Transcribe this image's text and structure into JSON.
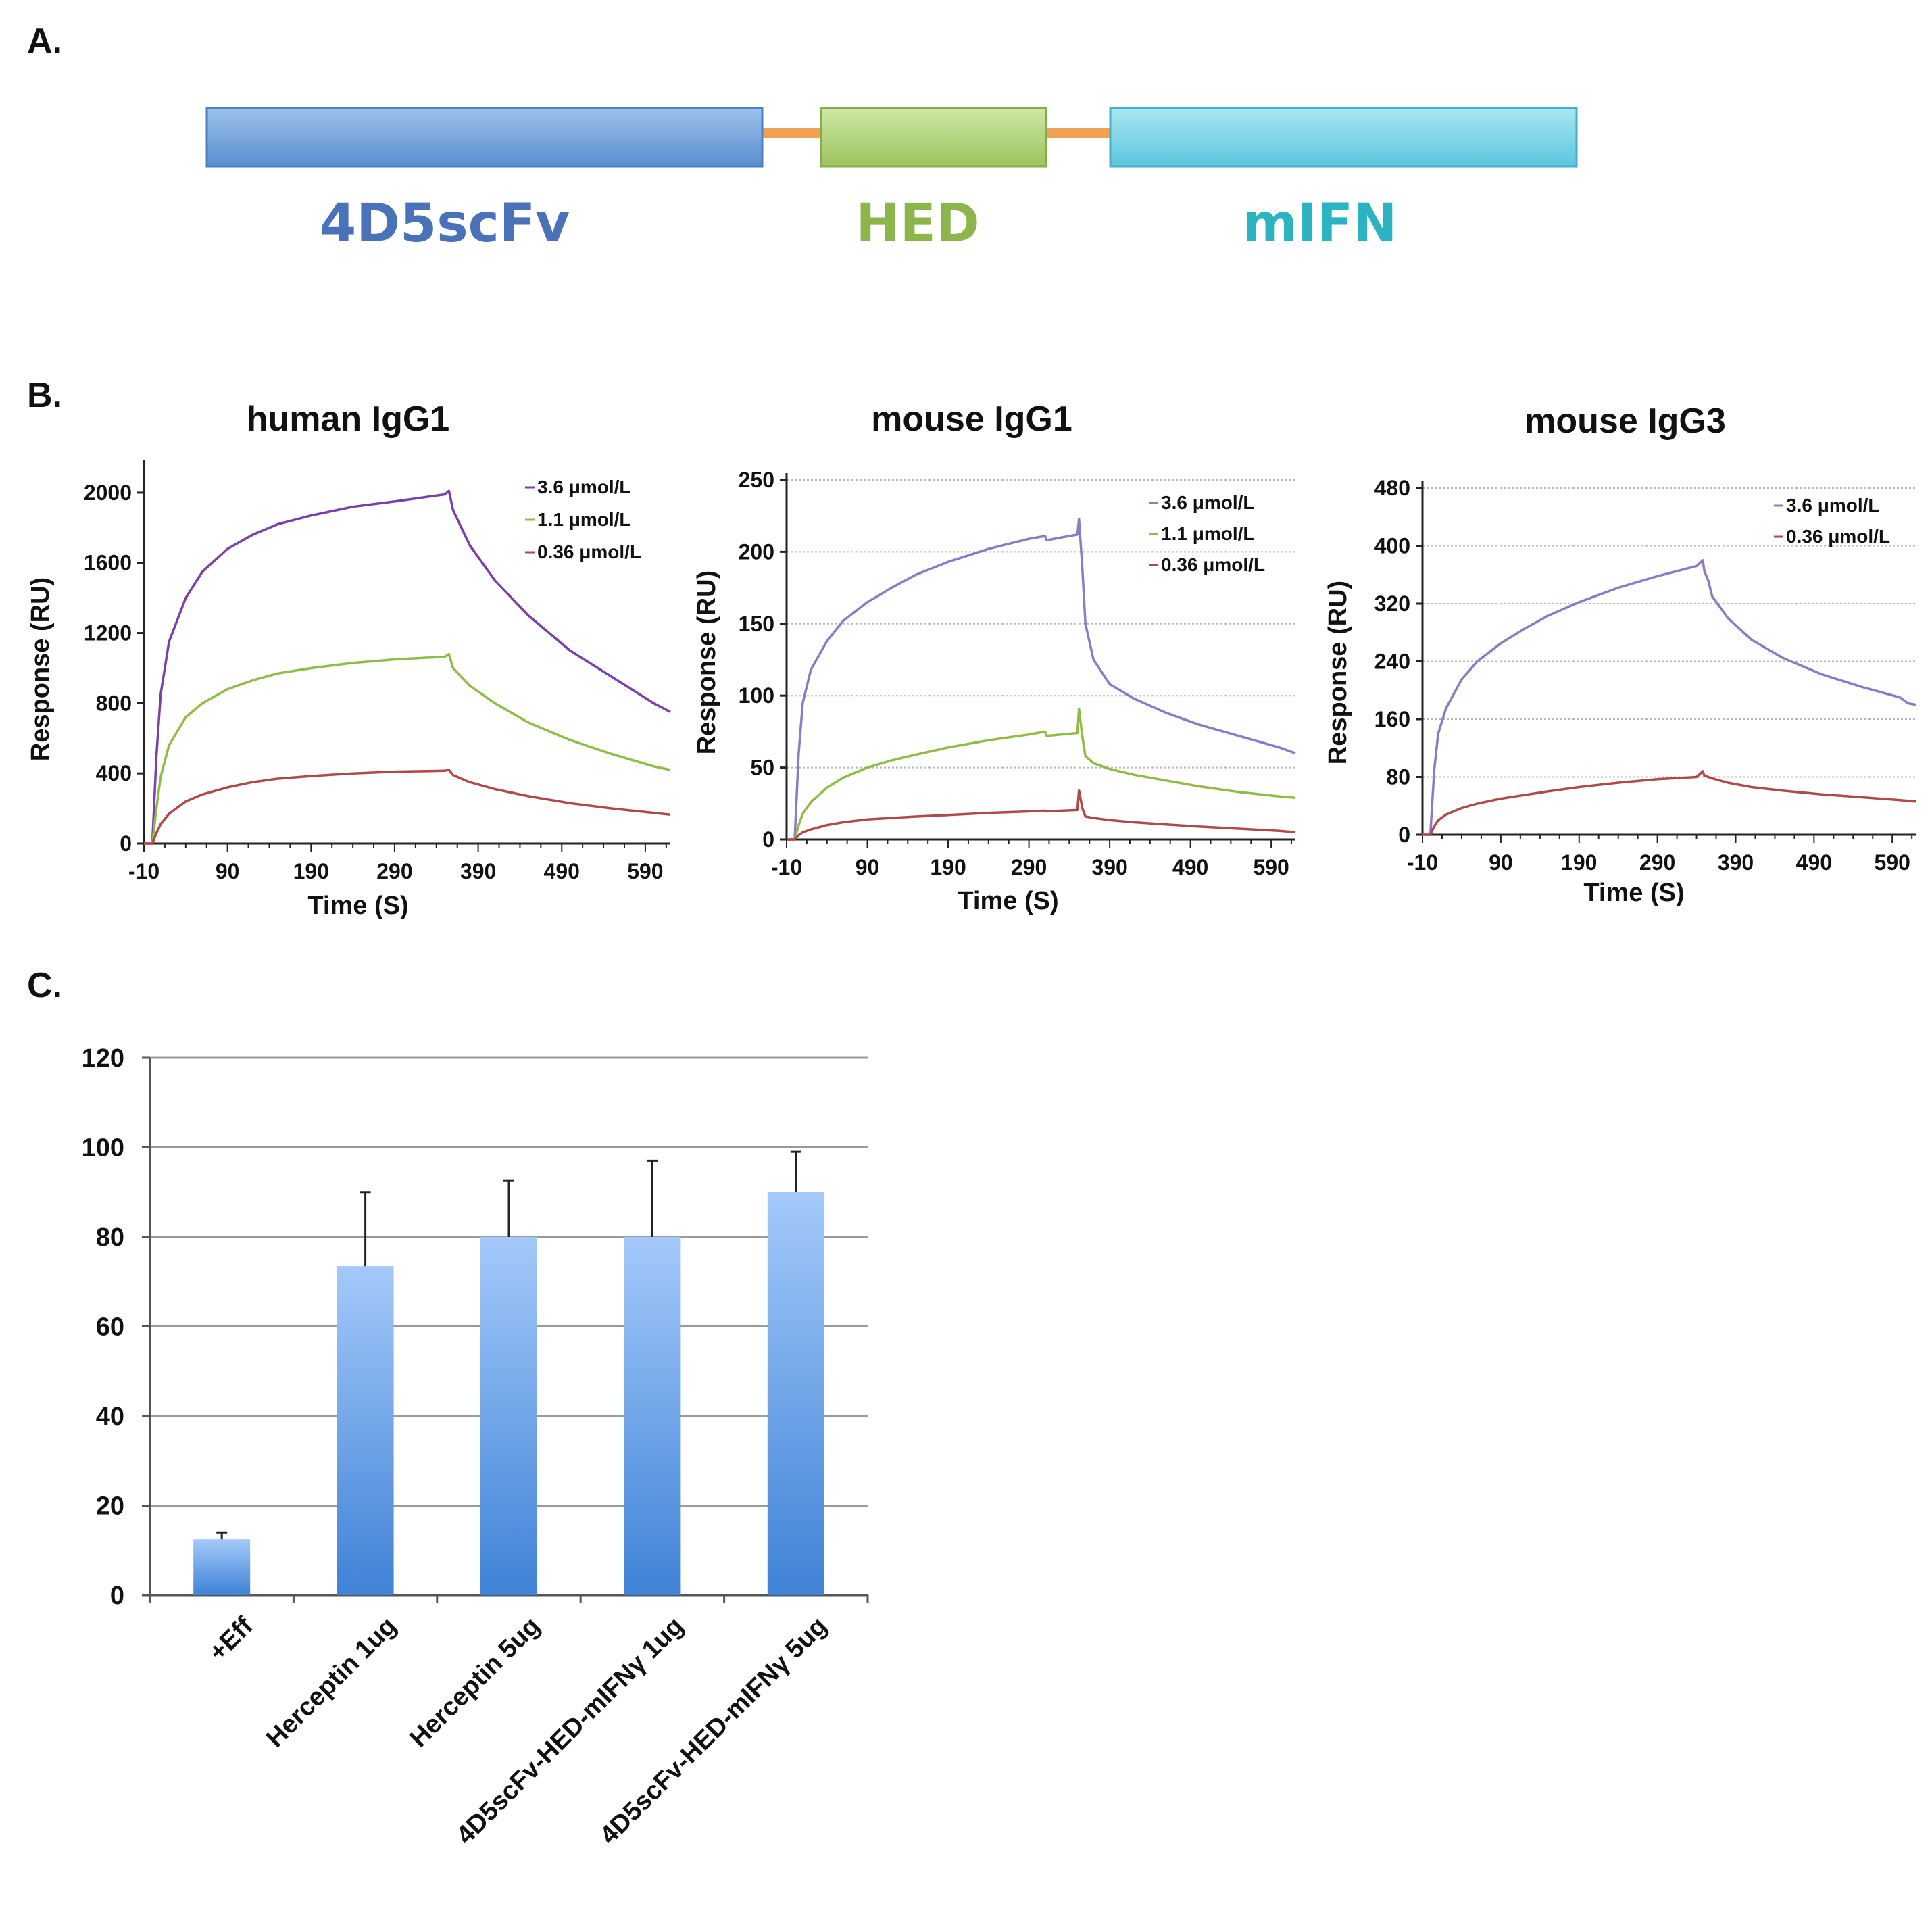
{
  "panels": {
    "a": "A.",
    "b": "B.",
    "c": "C."
  },
  "colors": {
    "scfv": "#6aa0d8",
    "hed": "#a6cc66",
    "mifn": "#6fcfe3",
    "linker": "#f0a050",
    "purple": "#7a3fa8",
    "green": "#8fbc45",
    "red": "#b04a4a",
    "bar": "#5b9ae3",
    "axis": "#222222"
  },
  "construct": {
    "labels": {
      "scfv": "4D5scFv",
      "hed": "HED",
      "mifn": "mIFN"
    },
    "label_colors": {
      "scfv": "#4a72b8",
      "hed": "#8cb54c",
      "mifn": "#2bb3c2"
    }
  },
  "chart_data": [
    {
      "type": "line",
      "title": "human IgG1",
      "xlabel": "Time (S)",
      "ylabel": "Response (RU)",
      "xlim": [
        -10,
        620
      ],
      "ylim": [
        0,
        2150
      ],
      "xticks": [
        -10,
        90,
        190,
        290,
        390,
        490,
        590
      ],
      "yticks": [
        0,
        400,
        800,
        1200,
        1600,
        2000
      ],
      "gridlines": false,
      "legend_position": "top-right",
      "series": [
        {
          "name": "3.6 μmol/L",
          "color": "#7a3fa8",
          "x": [
            -10,
            0,
            5,
            10,
            20,
            40,
            60,
            90,
            120,
            150,
            190,
            240,
            290,
            350,
            355,
            360,
            380,
            410,
            450,
            500,
            550,
            600,
            620
          ],
          "y": [
            0,
            0,
            500,
            850,
            1150,
            1400,
            1550,
            1680,
            1760,
            1820,
            1870,
            1920,
            1950,
            1990,
            2010,
            1900,
            1700,
            1500,
            1300,
            1100,
            950,
            800,
            750
          ]
        },
        {
          "name": "1.1 μmol/L",
          "color": "#8fbc45",
          "x": [
            -10,
            0,
            5,
            10,
            20,
            40,
            60,
            90,
            120,
            150,
            190,
            240,
            290,
            350,
            355,
            360,
            380,
            410,
            450,
            500,
            550,
            600,
            620
          ],
          "y": [
            0,
            0,
            200,
            380,
            560,
            720,
            800,
            880,
            930,
            970,
            1000,
            1030,
            1050,
            1065,
            1080,
            1000,
            900,
            800,
            690,
            590,
            510,
            440,
            420
          ]
        },
        {
          "name": "0.36 μmol/L",
          "color": "#b04a4a",
          "x": [
            -10,
            0,
            5,
            10,
            20,
            40,
            60,
            90,
            120,
            150,
            190,
            240,
            290,
            350,
            355,
            360,
            380,
            410,
            450,
            500,
            550,
            600,
            620
          ],
          "y": [
            0,
            0,
            60,
            110,
            170,
            240,
            280,
            320,
            350,
            370,
            385,
            400,
            410,
            415,
            420,
            390,
            350,
            310,
            270,
            230,
            200,
            175,
            165
          ]
        }
      ]
    },
    {
      "type": "line",
      "title": "mouse IgG1",
      "xlabel": "Time (S)",
      "ylabel": "Response (RU)",
      "xlim": [
        -10,
        620
      ],
      "ylim": [
        0,
        250
      ],
      "xticks": [
        -10,
        90,
        190,
        290,
        390,
        490,
        590
      ],
      "yticks": [
        0,
        50,
        100,
        150,
        200,
        250
      ],
      "gridlines": true,
      "legend_position": "top-right",
      "series": [
        {
          "name": "3.6 μmol/L",
          "color": "#8b7bc4",
          "x": [
            -10,
            0,
            5,
            10,
            20,
            40,
            60,
            90,
            120,
            150,
            190,
            240,
            290,
            310,
            312,
            330,
            350,
            352,
            356,
            360,
            370,
            390,
            420,
            460,
            500,
            550,
            600,
            620
          ],
          "y": [
            0,
            0,
            60,
            95,
            118,
            138,
            152,
            165,
            175,
            184,
            193,
            202,
            209,
            211,
            208,
            210,
            212,
            223,
            190,
            150,
            125,
            108,
            98,
            88,
            80,
            72,
            64,
            60
          ]
        },
        {
          "name": "1.1 μmol/L",
          "color": "#8fbc45",
          "x": [
            -10,
            0,
            5,
            10,
            20,
            40,
            60,
            90,
            120,
            150,
            190,
            240,
            290,
            310,
            312,
            330,
            350,
            352,
            356,
            360,
            370,
            390,
            420,
            460,
            500,
            550,
            600,
            620
          ],
          "y": [
            0,
            0,
            10,
            18,
            26,
            36,
            43,
            50,
            55,
            59,
            64,
            69,
            73,
            75,
            72,
            73,
            74,
            91,
            72,
            58,
            53,
            49,
            45,
            41,
            37,
            33,
            30,
            29
          ]
        },
        {
          "name": "0.36 μmol/L",
          "color": "#b04a4a",
          "x": [
            -10,
            0,
            5,
            10,
            20,
            40,
            60,
            90,
            120,
            150,
            190,
            240,
            290,
            310,
            312,
            330,
            350,
            352,
            356,
            360,
            370,
            390,
            420,
            460,
            500,
            550,
            600,
            620
          ],
          "y": [
            0,
            0,
            3,
            5,
            7,
            10,
            12,
            14,
            15,
            16,
            17,
            18.5,
            19.5,
            20,
            19.5,
            20,
            20.5,
            34,
            22,
            16,
            15,
            13.5,
            12,
            10.5,
            9,
            7.5,
            6,
            5
          ]
        }
      ]
    },
    {
      "type": "line",
      "title": "mouse IgG3",
      "xlabel": "Time (S)",
      "ylabel": "Response (RU)",
      "xlim": [
        -10,
        620
      ],
      "ylim": [
        0,
        480
      ],
      "xticks": [
        -10,
        90,
        190,
        290,
        390,
        490,
        590
      ],
      "yticks": [
        0,
        80,
        160,
        240,
        320,
        400,
        480
      ],
      "gridlines": true,
      "legend_position": "top-right",
      "series": [
        {
          "name": "3.6 μmol/L",
          "color": "#8b7bc4",
          "x": [
            -10,
            0,
            5,
            10,
            20,
            40,
            60,
            90,
            120,
            150,
            190,
            240,
            290,
            340,
            348,
            350,
            355,
            360,
            380,
            410,
            450,
            500,
            550,
            600,
            610,
            620
          ],
          "y": [
            0,
            0,
            90,
            140,
            175,
            215,
            240,
            265,
            285,
            303,
            322,
            342,
            358,
            372,
            380,
            365,
            352,
            330,
            300,
            270,
            245,
            222,
            205,
            190,
            182,
            180
          ]
        },
        {
          "name": "0.36 μmol/L",
          "color": "#b04a4a",
          "x": [
            -10,
            0,
            5,
            10,
            20,
            40,
            60,
            90,
            120,
            150,
            190,
            240,
            290,
            340,
            348,
            350,
            355,
            360,
            380,
            410,
            450,
            500,
            550,
            600,
            610,
            620
          ],
          "y": [
            0,
            0,
            12,
            20,
            28,
            37,
            43,
            50,
            55,
            60,
            66,
            72,
            77,
            80,
            88,
            82,
            80,
            78,
            72,
            66,
            61,
            56,
            52,
            48,
            47,
            46
          ]
        }
      ]
    },
    {
      "type": "bar",
      "title": "",
      "xlabel": "",
      "ylabel": "",
      "ylim": [
        0,
        120
      ],
      "yticks": [
        0,
        20,
        40,
        60,
        80,
        100,
        120
      ],
      "gridlines": true,
      "categories": [
        "+Eff",
        "Herceptin 1ug",
        "Herceptin 5ug",
        "4D5scFv-HED-mIFNγ 1ug",
        "4D5scFv-HED-mIFNγ 5ug"
      ],
      "values": [
        12.5,
        73.5,
        80,
        80,
        90
      ],
      "error_bars": [
        1.5,
        16.5,
        12.5,
        17,
        9
      ]
    }
  ]
}
